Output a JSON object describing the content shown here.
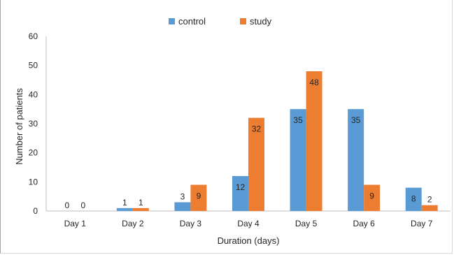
{
  "chart_data": {
    "type": "bar",
    "title": "",
    "xlabel": "Duration (days)",
    "ylabel": "Number of patients",
    "categories": [
      "Day 1",
      "Day 2",
      "Day 3",
      "Day 4",
      "Day 5",
      "Day 6",
      "Day 7"
    ],
    "series": [
      {
        "name": "control",
        "color": "#5b9bd5",
        "values": [
          0,
          1,
          3,
          12,
          35,
          35,
          8
        ]
      },
      {
        "name": "study",
        "color": "#ed7d31",
        "values": [
          0,
          1,
          9,
          32,
          48,
          9,
          2
        ]
      }
    ],
    "ylim": [
      0,
      60
    ],
    "yticks": [
      0,
      10,
      20,
      30,
      40,
      50,
      60
    ],
    "legend": "top-center",
    "grid": false
  }
}
